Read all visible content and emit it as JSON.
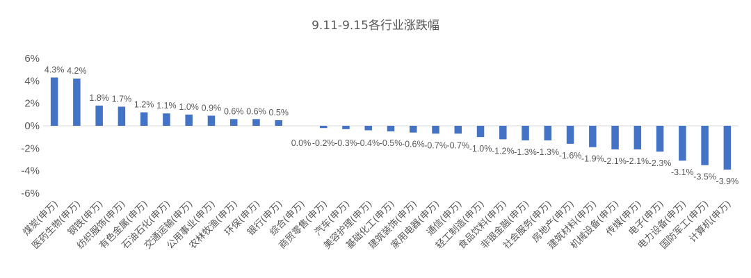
{
  "chart_data": {
    "type": "bar",
    "title": "9.11-9.15各行业涨跌幅",
    "xlabel": "",
    "ylabel": "",
    "ylim": [
      -6,
      6
    ],
    "yticks": [
      6,
      4,
      2,
      0,
      -2,
      -4,
      -6
    ],
    "ytick_labels": [
      "6%",
      "4%",
      "2%",
      "0%",
      "-2%",
      "-4%",
      "-6%"
    ],
    "grid": false,
    "legend": "none",
    "colors": {
      "bar": "#4472C4",
      "axis": "#D9D9D9",
      "text": "#595959"
    },
    "categories": [
      "煤炭(申万)",
      "医药生物(申万)",
      "钢铁(申万)",
      "纺织服饰(申万)",
      "有色金属(申万)",
      "石油石化(申万)",
      "交通运输(申万)",
      "公用事业(申万)",
      "农林牧渔(申万)",
      "环保(申万)",
      "银行(申万)",
      "综合(申万)",
      "商贸零售(申万)",
      "汽车(申万)",
      "美容护理(申万)",
      "基础化工(申万)",
      "建筑装饰(申万)",
      "家用电器(申万)",
      "通信(申万)",
      "轻工制造(申万)",
      "食品饮料(申万)",
      "非银金融(申万)",
      "社会服务(申万)",
      "房地产(申万)",
      "建筑材料(申万)",
      "机械设备(申万)",
      "传媒(申万)",
      "电子(申万)",
      "电力设备(申万)",
      "国防军工(申万)",
      "计算机(申万)"
    ],
    "values": [
      4.3,
      4.2,
      1.8,
      1.7,
      1.2,
      1.1,
      1.0,
      0.9,
      0.6,
      0.6,
      0.5,
      0.0,
      -0.2,
      -0.3,
      -0.4,
      -0.5,
      -0.6,
      -0.7,
      -0.7,
      -1.0,
      -1.2,
      -1.3,
      -1.3,
      -1.6,
      -1.9,
      -2.1,
      -2.1,
      -2.3,
      -3.1,
      -3.5,
      -3.9
    ],
    "data_labels": [
      "4.3%",
      "4.2%",
      "1.8%",
      "1.7%",
      "1.2%",
      "1.1%",
      "1.0%",
      "0.9%",
      "0.6%",
      "0.6%",
      "0.5%",
      "0.0%",
      "-0.2%",
      "-0.3%",
      "-0.4%",
      "-0.5%",
      "-0.6%",
      "-0.7%",
      "-0.7%",
      "-1.0%",
      "-1.2%",
      "-1.3%",
      "-1.3%",
      "-1.6%",
      "-1.9%",
      "-2.1%",
      "-2.1%",
      "-2.3%",
      "-3.1%",
      "-3.5%",
      "-3.9%"
    ]
  }
}
